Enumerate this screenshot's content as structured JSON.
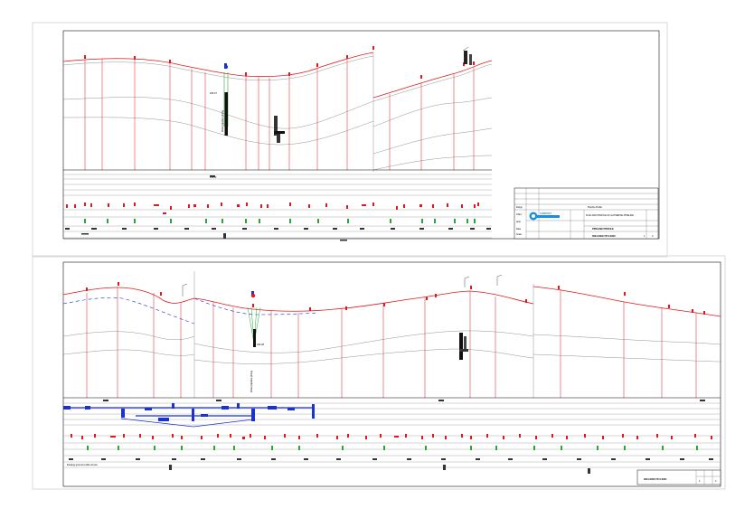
{
  "sheet1": {
    "well_label": "Water pipeline pitting",
    "elevation_label": "183.37",
    "station_label": "15+00",
    "title_block": {
      "header": "Pipeline Profile",
      "row_labels": [
        "Desgn",
        "Chkd",
        "Appr",
        "Date",
        "Scale",
        "Proj"
      ],
      "description": "PLAN AND PROFILE OF GATHERING PIPELINE",
      "sheet_title": "PIPELINE PROFILE",
      "drawing_no": "0001-0000-TP-0-0000",
      "sheet_no": "1",
      "rev": "0",
      "brand": "COMPANY"
    }
  },
  "sheet2": {
    "well_label": "Water pipeline pitting",
    "elevation_label": "183.28",
    "note": "Existing ground profile shown",
    "drawing_no": "0001-0000-TP-0-0001",
    "sheet_no": "2",
    "rev": "0"
  },
  "colors": {
    "ground": "#e0191c",
    "grid": "#999999",
    "pipe_blue": "#1a33cc",
    "marker_green": "#2aa836"
  }
}
